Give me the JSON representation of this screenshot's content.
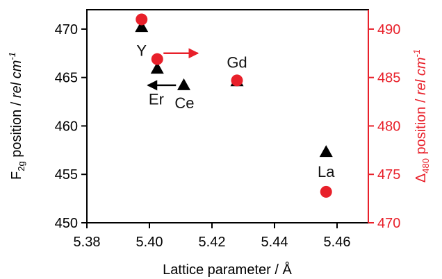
{
  "chart_data": {
    "type": "scatter",
    "xlabel": "Lattice parameter / Å",
    "ylabel_left": {
      "prefix": "F",
      "subscript": "2g",
      "middle": " position / ",
      "italic": "rel cm",
      "superscript": "-1"
    },
    "ylabel_right": {
      "prefix": "Δ",
      "subscript": "480",
      "middle": " position / ",
      "italic": "rel cm",
      "superscript": "-1"
    },
    "xlim": [
      5.38,
      5.47
    ],
    "ylim_left": [
      450,
      472
    ],
    "ylim_right": [
      470,
      492
    ],
    "x_ticks": [
      "5.38",
      "5.40",
      "5.42",
      "5.44",
      "5.46"
    ],
    "y_left_ticks": [
      "450",
      "455",
      "460",
      "465",
      "470"
    ],
    "y_right_ticks": [
      "470",
      "475",
      "480",
      "485",
      "490"
    ],
    "series": [
      {
        "axis": "left",
        "marker": "triangle",
        "color": "#000000",
        "points": [
          {
            "x": 5.3975,
            "y": 470.2
          },
          {
            "x": 5.4025,
            "y": 465.9
          },
          {
            "x": 5.411,
            "y": 464.2
          },
          {
            "x": 5.428,
            "y": 464.6
          },
          {
            "x": 5.4565,
            "y": 457.3
          }
        ]
      },
      {
        "axis": "right",
        "marker": "circle",
        "color": "#e8202a",
        "points": [
          {
            "x": 5.3975,
            "y": 491.0
          },
          {
            "x": 5.4025,
            "y": 486.9
          },
          {
            "x": 5.428,
            "y": 484.7
          },
          {
            "x": 5.4565,
            "y": 473.2
          }
        ]
      }
    ],
    "point_labels": [
      {
        "text": "Y",
        "x": 5.3975,
        "y": 467.8
      },
      {
        "text": "Er",
        "x": 5.4022,
        "y": 462.8
      },
      {
        "text": "Ce",
        "x": 5.4112,
        "y": 462.4
      },
      {
        "text": "Gd",
        "x": 5.428,
        "y": 466.6
      },
      {
        "text": "La",
        "x": 5.4565,
        "y": 455.3
      }
    ],
    "annotations": [
      {
        "type": "arrow",
        "color": "#000000",
        "direction": "left",
        "x_from": 5.4085,
        "x_to": 5.3995,
        "y_left": 464.2
      },
      {
        "type": "arrow",
        "color": "#e8202a",
        "direction": "right",
        "x_from": 5.4045,
        "x_to": 5.4155,
        "y_left": 467.5
      }
    ],
    "colors": {
      "left_axis": "#000000",
      "right_axis": "#e8202a"
    },
    "grid": false,
    "legend": "none"
  }
}
